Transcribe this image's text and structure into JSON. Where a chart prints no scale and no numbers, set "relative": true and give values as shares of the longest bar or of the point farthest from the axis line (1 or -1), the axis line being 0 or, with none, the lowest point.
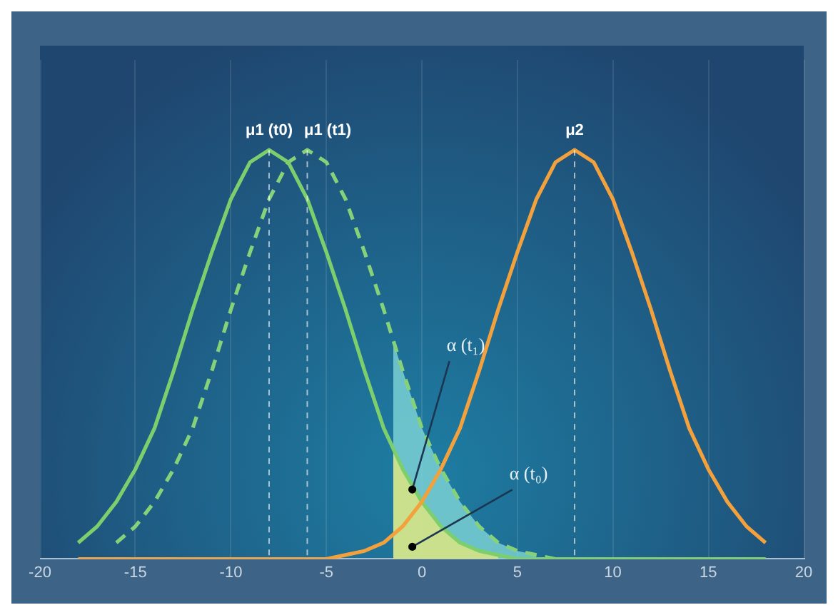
{
  "chart_data": {
    "type": "line",
    "relative": true,
    "xlim": [
      -20,
      20
    ],
    "xticks": [
      -20,
      -15,
      -10,
      -5,
      0,
      5,
      10,
      15,
      20
    ],
    "grid": "x",
    "legend": false,
    "marker": "none",
    "series": [
      {
        "type": "area",
        "color": "#7fd6d6",
        "x": [
          -1.5,
          -1,
          0,
          1,
          2,
          3,
          4,
          5,
          6
        ],
        "values": [
          0.53,
          0.46,
          0.32,
          0.22,
          0.14,
          0.08,
          0.04,
          0.02,
          0.01
        ]
      },
      {
        "type": "area",
        "color": "#e3e77c",
        "x": [
          -1.5,
          -1,
          0,
          1,
          2,
          3,
          4
        ],
        "values": [
          0.27,
          0.22,
          0.14,
          0.08,
          0.04,
          0.02,
          0.01
        ]
      },
      {
        "type": "line",
        "color": "#86d27a",
        "line_style": "dashed",
        "x": [
          -16,
          -15,
          -14,
          -13,
          -12,
          -11,
          -10,
          -9,
          -8,
          -7,
          -6,
          -5,
          -4,
          -3,
          -2,
          -1,
          0,
          1,
          2,
          3,
          4,
          5,
          6,
          7,
          8,
          9,
          10,
          11,
          12,
          13,
          14,
          15,
          16,
          17,
          18
        ],
        "values": [
          0.04,
          0.08,
          0.14,
          0.22,
          0.32,
          0.46,
          0.61,
          0.75,
          0.88,
          0.97,
          1,
          0.97,
          0.88,
          0.75,
          0.61,
          0.46,
          0.32,
          0.22,
          0.14,
          0.08,
          0.04,
          0.02,
          0.01,
          0,
          0,
          0,
          0,
          0,
          0,
          0,
          0,
          0,
          0,
          0,
          0
        ]
      },
      {
        "type": "line",
        "color": "#7ccf6c",
        "line_style": "solid",
        "x": [
          -18,
          -17,
          -16,
          -15,
          -14,
          -13,
          -12,
          -11,
          -10,
          -9,
          -8,
          -7,
          -6,
          -5,
          -4,
          -3,
          -2,
          -1,
          0,
          1,
          2,
          3,
          4,
          5,
          6,
          7,
          8,
          9,
          10,
          11,
          12,
          13,
          14,
          15,
          16,
          17,
          18
        ],
        "values": [
          0.04,
          0.08,
          0.14,
          0.22,
          0.32,
          0.46,
          0.61,
          0.75,
          0.88,
          0.97,
          1,
          0.97,
          0.88,
          0.75,
          0.61,
          0.46,
          0.32,
          0.22,
          0.14,
          0.08,
          0.04,
          0.02,
          0.01,
          0,
          0,
          0,
          0,
          0,
          0,
          0,
          0,
          0,
          0,
          0,
          0,
          0,
          0
        ]
      },
      {
        "type": "line",
        "color": "#f3a13c",
        "line_style": "solid",
        "x": [
          -18,
          -17,
          -16,
          -15,
          -14,
          -13,
          -12,
          -11,
          -10,
          -9,
          -8,
          -7,
          -6,
          -5,
          -4,
          -3,
          -2,
          -1,
          0,
          1,
          2,
          3,
          4,
          5,
          6,
          7,
          8,
          9,
          10,
          11,
          12,
          13,
          14,
          15,
          16,
          17,
          18
        ],
        "values": [
          0,
          0,
          0,
          0,
          0,
          0,
          0,
          0,
          0,
          0,
          0,
          0,
          0,
          0,
          0.01,
          0.02,
          0.04,
          0.08,
          0.14,
          0.22,
          0.32,
          0.46,
          0.61,
          0.75,
          0.88,
          0.97,
          1,
          0.97,
          0.88,
          0.75,
          0.61,
          0.46,
          0.32,
          0.22,
          0.14,
          0.08,
          0.04
        ]
      }
    ],
    "ref_lines": [
      {
        "axis": "x",
        "value": -8,
        "label": "μ1 (t0)"
      },
      {
        "axis": "x",
        "value": -6,
        "label": "μ1 (t1)"
      },
      {
        "axis": "x",
        "value": 8,
        "label": "μ2"
      }
    ],
    "annotations": [
      {
        "text": "α (t₁)",
        "x": -0.5,
        "y": 0.17
      },
      {
        "text": "α (t₀)",
        "x": -0.5,
        "y": 0.03
      }
    ]
  }
}
